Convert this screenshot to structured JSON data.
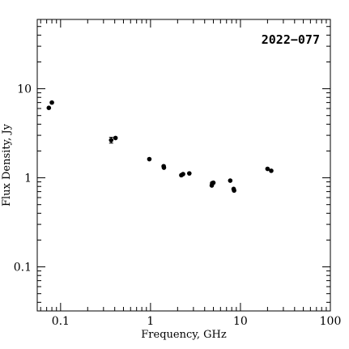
{
  "chart_data": {
    "type": "scatter",
    "title": "2022−077",
    "xlabel": "Frequency, GHz",
    "ylabel": "Flux Density, Jy",
    "xscale": "log",
    "yscale": "log",
    "xlim": [
      0.055,
      100
    ],
    "ylim": [
      0.032,
      60
    ],
    "x_ticks": [
      {
        "value": 0.1,
        "label": "0.1"
      },
      {
        "value": 1,
        "label": "1"
      },
      {
        "value": 10,
        "label": "10"
      },
      {
        "value": 100,
        "label": "100"
      }
    ],
    "y_ticks": [
      {
        "value": 0.1,
        "label": "0.1"
      },
      {
        "value": 1,
        "label": "1"
      },
      {
        "value": 10,
        "label": "10"
      }
    ],
    "grid": false,
    "legend": "none",
    "title_position": "top-right",
    "series": [
      {
        "points": [
          {
            "x": 0.074,
            "y": 6.1
          },
          {
            "x": 0.08,
            "y": 7.0
          },
          {
            "x": 0.365,
            "y": 2.65,
            "err_low": 2.45,
            "err_high": 2.85
          },
          {
            "x": 0.408,
            "y": 2.8
          },
          {
            "x": 0.97,
            "y": 1.62
          },
          {
            "x": 1.4,
            "y": 1.35
          },
          {
            "x": 1.41,
            "y": 1.3
          },
          {
            "x": 2.2,
            "y": 1.07
          },
          {
            "x": 2.3,
            "y": 1.1
          },
          {
            "x": 2.7,
            "y": 1.12
          },
          {
            "x": 4.8,
            "y": 0.82
          },
          {
            "x": 4.85,
            "y": 0.87
          },
          {
            "x": 5.0,
            "y": 0.88
          },
          {
            "x": 7.7,
            "y": 0.93
          },
          {
            "x": 8.4,
            "y": 0.75
          },
          {
            "x": 8.5,
            "y": 0.72
          },
          {
            "x": 20.0,
            "y": 1.26
          },
          {
            "x": 22.0,
            "y": 1.2
          }
        ]
      }
    ]
  }
}
